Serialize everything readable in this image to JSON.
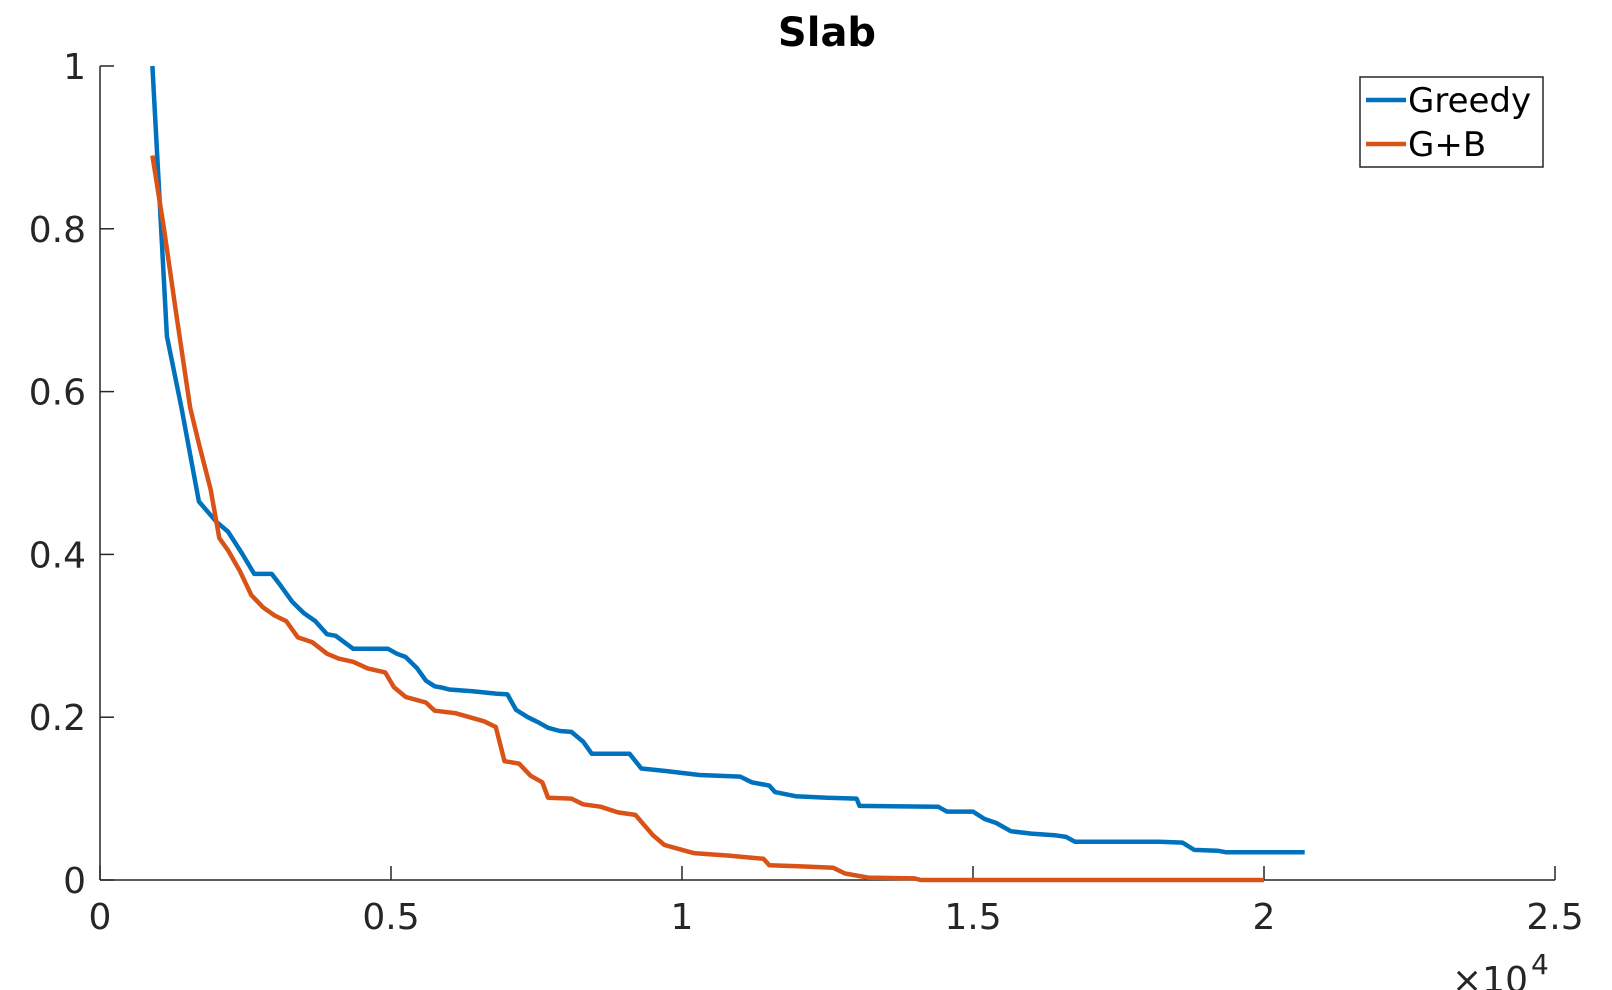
{
  "chart_data": {
    "type": "line",
    "title": "Slab",
    "xlabel": "",
    "ylabel": "",
    "xlim": [
      0,
      25000
    ],
    "ylim": [
      0,
      1
    ],
    "x_ticks": [
      0,
      5000,
      10000,
      15000,
      20000,
      25000
    ],
    "x_tick_labels": [
      "0",
      "0.5",
      "1",
      "1.5",
      "2",
      "2.5"
    ],
    "y_ticks": [
      0,
      0.2,
      0.4,
      0.6,
      0.8,
      1
    ],
    "y_tick_labels": [
      "0",
      "0.2",
      "0.4",
      "0.6",
      "0.8",
      "1"
    ],
    "x_exponent_label": "×10",
    "x_exponent_power": "4",
    "grid": false,
    "legend_position": "top-right",
    "series": [
      {
        "name": "Greedy",
        "color": "#0072BD",
        "points": [
          [
            900,
            1.0
          ],
          [
            1150,
            0.668
          ],
          [
            1400,
            0.58
          ],
          [
            1700,
            0.465
          ],
          [
            2000,
            0.44
          ],
          [
            2200,
            0.428
          ],
          [
            2450,
            0.4
          ],
          [
            2650,
            0.376
          ],
          [
            2950,
            0.376
          ],
          [
            3100,
            0.362
          ],
          [
            3300,
            0.342
          ],
          [
            3500,
            0.328
          ],
          [
            3700,
            0.318
          ],
          [
            3900,
            0.302
          ],
          [
            4050,
            0.3
          ],
          [
            4350,
            0.284
          ],
          [
            4950,
            0.284
          ],
          [
            5100,
            0.278
          ],
          [
            5250,
            0.274
          ],
          [
            5450,
            0.26
          ],
          [
            5600,
            0.245
          ],
          [
            5750,
            0.238
          ],
          [
            5900,
            0.236
          ],
          [
            6000,
            0.234
          ],
          [
            6400,
            0.232
          ],
          [
            6800,
            0.229
          ],
          [
            7000,
            0.228
          ],
          [
            7150,
            0.209
          ],
          [
            7350,
            0.2
          ],
          [
            7550,
            0.193
          ],
          [
            7700,
            0.187
          ],
          [
            7900,
            0.183
          ],
          [
            8100,
            0.182
          ],
          [
            8300,
            0.17
          ],
          [
            8450,
            0.155
          ],
          [
            9100,
            0.155
          ],
          [
            9300,
            0.137
          ],
          [
            9700,
            0.134
          ],
          [
            10300,
            0.129
          ],
          [
            11000,
            0.127
          ],
          [
            11200,
            0.12
          ],
          [
            11500,
            0.116
          ],
          [
            11600,
            0.108
          ],
          [
            11950,
            0.103
          ],
          [
            12500,
            0.101
          ],
          [
            13000,
            0.1
          ],
          [
            13050,
            0.091
          ],
          [
            14400,
            0.09
          ],
          [
            14550,
            0.084
          ],
          [
            15000,
            0.084
          ],
          [
            15200,
            0.075
          ],
          [
            15400,
            0.07
          ],
          [
            15650,
            0.06
          ],
          [
            16000,
            0.057
          ],
          [
            16400,
            0.055
          ],
          [
            16600,
            0.053
          ],
          [
            16750,
            0.047
          ],
          [
            17300,
            0.047
          ],
          [
            18000,
            0.047
          ],
          [
            18200,
            0.047
          ],
          [
            18600,
            0.046
          ],
          [
            18800,
            0.037
          ],
          [
            19200,
            0.036
          ],
          [
            19350,
            0.034
          ],
          [
            20500,
            0.034
          ],
          [
            20700,
            0.034
          ]
        ]
      },
      {
        "name": "G+B",
        "color": "#D95319",
        "points": [
          [
            900,
            0.89
          ],
          [
            1100,
            0.8
          ],
          [
            1300,
            0.7
          ],
          [
            1550,
            0.58
          ],
          [
            1700,
            0.536
          ],
          [
            1900,
            0.48
          ],
          [
            2050,
            0.42
          ],
          [
            2200,
            0.405
          ],
          [
            2400,
            0.38
          ],
          [
            2600,
            0.35
          ],
          [
            2800,
            0.335
          ],
          [
            3000,
            0.325
          ],
          [
            3200,
            0.318
          ],
          [
            3400,
            0.298
          ],
          [
            3650,
            0.292
          ],
          [
            3900,
            0.278
          ],
          [
            4100,
            0.272
          ],
          [
            4350,
            0.268
          ],
          [
            4600,
            0.26
          ],
          [
            4900,
            0.255
          ],
          [
            5050,
            0.237
          ],
          [
            5250,
            0.225
          ],
          [
            5600,
            0.218
          ],
          [
            5750,
            0.208
          ],
          [
            6100,
            0.205
          ],
          [
            6350,
            0.2
          ],
          [
            6600,
            0.195
          ],
          [
            6800,
            0.188
          ],
          [
            6950,
            0.146
          ],
          [
            7200,
            0.143
          ],
          [
            7400,
            0.128
          ],
          [
            7600,
            0.12
          ],
          [
            7700,
            0.101
          ],
          [
            8100,
            0.1
          ],
          [
            8300,
            0.093
          ],
          [
            8600,
            0.09
          ],
          [
            8900,
            0.083
          ],
          [
            9200,
            0.08
          ],
          [
            9500,
            0.055
          ],
          [
            9700,
            0.043
          ],
          [
            9950,
            0.038
          ],
          [
            10200,
            0.033
          ],
          [
            10800,
            0.03
          ],
          [
            11400,
            0.026
          ],
          [
            11500,
            0.018
          ],
          [
            12000,
            0.017
          ],
          [
            12600,
            0.015
          ],
          [
            12800,
            0.008
          ],
          [
            13200,
            0.003
          ],
          [
            14000,
            0.002
          ],
          [
            14100,
            0.0
          ],
          [
            20000,
            0.0
          ]
        ]
      }
    ]
  }
}
